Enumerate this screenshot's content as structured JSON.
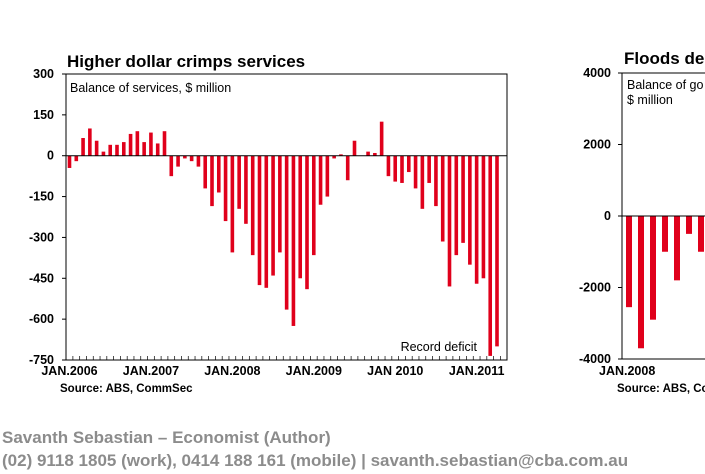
{
  "chart_data": [
    {
      "type": "bar",
      "title": "Higher dollar crimps services",
      "inner_label": "Balance of services, $ million",
      "annotation": "Record deficit",
      "source": "Source: ABS, CommSec",
      "ylim": [
        -750,
        300
      ],
      "yticks": [
        "300",
        "150",
        "0",
        "-150",
        "-300",
        "-450",
        "-600",
        "-750"
      ],
      "xtick_labels": [
        "JAN.2006",
        "JAN.2007",
        "JAN.2008",
        "JAN.2009",
        "JAN 2010",
        "JAN.2011"
      ],
      "grid": false,
      "bar_color": "#e0001b",
      "values": [
        -45,
        -20,
        65,
        100,
        55,
        15,
        40,
        40,
        50,
        80,
        90,
        50,
        85,
        45,
        90,
        -75,
        -40,
        -10,
        -20,
        -40,
        -120,
        -185,
        -135,
        -240,
        -355,
        -195,
        -250,
        -365,
        -475,
        -485,
        -440,
        -355,
        -565,
        -625,
        -450,
        -490,
        -365,
        -180,
        -150,
        -10,
        5,
        -90,
        55,
        0,
        15,
        10,
        125,
        -75,
        -95,
        -100,
        -60,
        -120,
        -195,
        -100,
        -185,
        -315,
        -480,
        -365,
        -320,
        -400,
        -470,
        -450,
        -735,
        -700
      ]
    },
    {
      "type": "bar",
      "title": "Floods de",
      "inner_label_lines": [
        "Balance of go",
        "$ million"
      ],
      "source": "Source: ABS, Co",
      "ylim": [
        -4000,
        4000
      ],
      "yticks": [
        "4000",
        "2000",
        "0",
        "-2000",
        "-4000"
      ],
      "xtick_labels": [
        "JAN.2008"
      ],
      "grid": false,
      "bar_color": "#e0001b",
      "values": [
        -2550,
        -3700,
        -2900,
        -1000,
        -1800,
        -500,
        -1000
      ]
    }
  ],
  "footer": {
    "author": "Savanth Sebastian – Economist (Author)",
    "contact": "(02) 9118 1805 (work), 0414 188 161 (mobile)  |  savanth.sebastian@cba.com.au"
  }
}
